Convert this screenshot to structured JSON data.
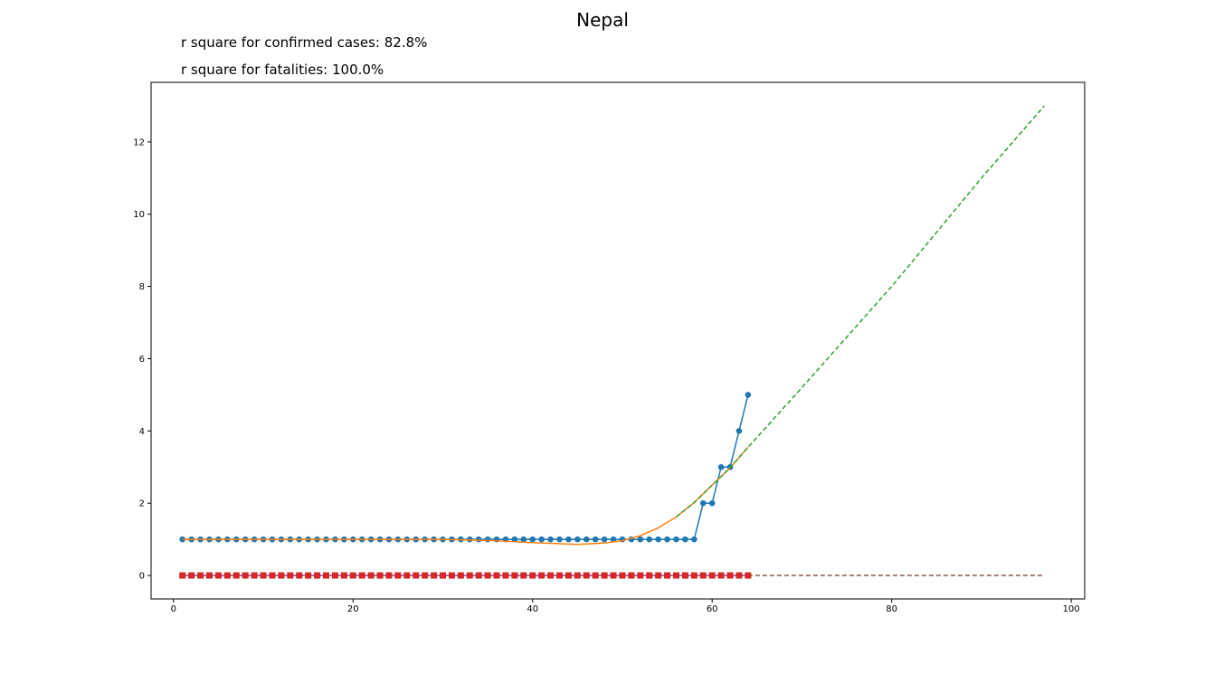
{
  "chart_data": {
    "type": "line",
    "title": "Nepal",
    "annotations": [
      "r square for confirmed cases: 82.8%",
      "r square for fatalities: 100.0%"
    ],
    "xlabel": "",
    "ylabel": "",
    "xlim": [
      -2.5,
      101.5
    ],
    "ylim": [
      -0.65,
      13.65
    ],
    "xticks": [
      0,
      20,
      40,
      60,
      80,
      100
    ],
    "yticks": [
      0,
      2,
      4,
      6,
      8,
      10,
      12
    ],
    "grid": false,
    "confirmed": {
      "x_start": 1,
      "values": [
        1,
        1,
        1,
        1,
        1,
        1,
        1,
        1,
        1,
        1,
        1,
        1,
        1,
        1,
        1,
        1,
        1,
        1,
        1,
        1,
        1,
        1,
        1,
        1,
        1,
        1,
        1,
        1,
        1,
        1,
        1,
        1,
        1,
        1,
        1,
        1,
        1,
        1,
        1,
        1,
        1,
        1,
        1,
        1,
        1,
        1,
        1,
        1,
        1,
        1,
        1,
        1,
        1,
        1,
        1,
        1,
        1,
        1,
        2,
        2,
        3,
        3,
        4,
        5
      ],
      "color": "#1f77b4"
    },
    "fatalities": {
      "x_start": 1,
      "values": [
        0,
        0,
        0,
        0,
        0,
        0,
        0,
        0,
        0,
        0,
        0,
        0,
        0,
        0,
        0,
        0,
        0,
        0,
        0,
        0,
        0,
        0,
        0,
        0,
        0,
        0,
        0,
        0,
        0,
        0,
        0,
        0,
        0,
        0,
        0,
        0,
        0,
        0,
        0,
        0,
        0,
        0,
        0,
        0,
        0,
        0,
        0,
        0,
        0,
        0,
        0,
        0,
        0,
        0,
        0,
        0,
        0,
        0,
        0,
        0,
        0,
        0,
        0,
        0
      ],
      "color": "#d62728"
    },
    "fit_confirmed": {
      "x": [
        1,
        10,
        20,
        30,
        35,
        40,
        45,
        48,
        50,
        52,
        54,
        56,
        58,
        60,
        62,
        64
      ],
      "y": [
        1,
        1,
        1,
        1,
        0.97,
        0.91,
        0.86,
        0.9,
        0.96,
        1.1,
        1.32,
        1.62,
        2.02,
        2.5,
        2.98,
        3.55
      ],
      "color": "#ff7f0e"
    },
    "projection_confirmed": {
      "x": [
        56,
        58,
        60,
        62,
        64,
        70,
        80,
        90,
        97
      ],
      "y": [
        1.62,
        2.02,
        2.5,
        2.98,
        3.55,
        5.2,
        8.0,
        11.0,
        13.0
      ],
      "color": "#2ca02c"
    },
    "fit_fatalities": {
      "x": [
        1,
        64
      ],
      "y": [
        0,
        0
      ],
      "color": "#9467bd"
    },
    "projection_fatalities": {
      "x": [
        64,
        97
      ],
      "y": [
        0,
        0
      ],
      "color": "#8c564b"
    }
  }
}
